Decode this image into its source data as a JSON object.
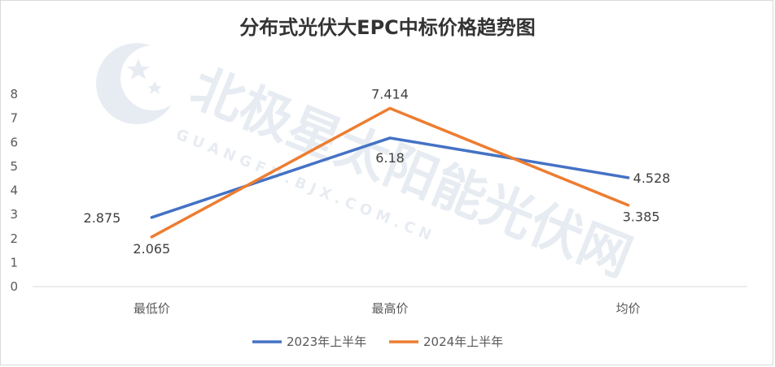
{
  "chart_data": {
    "type": "line",
    "title": "分布式光伏大EPC中标价格趋势图",
    "xlabel": "",
    "ylabel": "",
    "categories": [
      "最低价",
      "最高价",
      "均价"
    ],
    "ylim": [
      0,
      8
    ],
    "yticks": [
      "0",
      "1",
      "2",
      "3",
      "4",
      "5",
      "6",
      "7",
      "8"
    ],
    "grid": false,
    "legend_position": "bottom",
    "series": [
      {
        "name": "2023年上半年",
        "values": [
          2.875,
          6.18,
          4.528
        ],
        "labels": [
          "2.875",
          "6.18",
          "4.528"
        ],
        "color": "#4472C4"
      },
      {
        "name": "2024年上半年",
        "values": [
          2.065,
          7.414,
          3.385
        ],
        "labels": [
          "2.065",
          "7.414",
          "3.385"
        ],
        "color": "#ED7D31"
      }
    ]
  },
  "watermark": {
    "text": "北极星太阳能光伏网",
    "subtext": "G U A N G F U . B J X . C O M . C N",
    "icon": "north-star-logo-icon"
  }
}
